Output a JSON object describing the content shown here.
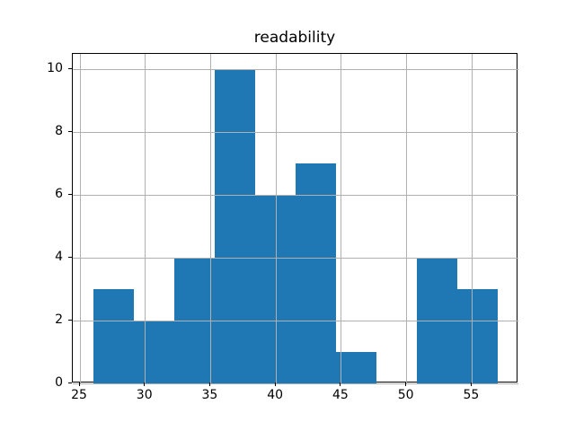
{
  "figure": {
    "background": "#ffffff"
  },
  "chart_data": {
    "type": "bar",
    "subtype": "histogram",
    "title": "readability",
    "xlabel": "",
    "ylabel": "",
    "bin_edges": [
      26.0,
      29.1,
      32.2,
      35.3,
      38.4,
      41.5,
      44.6,
      47.7,
      50.8,
      53.9,
      57.0
    ],
    "counts": [
      3,
      2,
      4,
      10,
      6,
      7,
      1,
      0,
      4,
      3
    ],
    "x_ticks": [
      25,
      30,
      35,
      40,
      45,
      50,
      55
    ],
    "y_ticks": [
      0,
      2,
      4,
      6,
      8,
      10
    ],
    "xlim": [
      24.45,
      58.55
    ],
    "ylim": [
      0,
      10.5
    ],
    "grid": true,
    "grid_above_bars": true,
    "legend": "none",
    "colors": {
      "bar": "#1f77b4",
      "grid": "#b0b0b0",
      "spine": "#000000",
      "tick_label": "#000000",
      "title": "#000000",
      "background": "#ffffff"
    }
  }
}
